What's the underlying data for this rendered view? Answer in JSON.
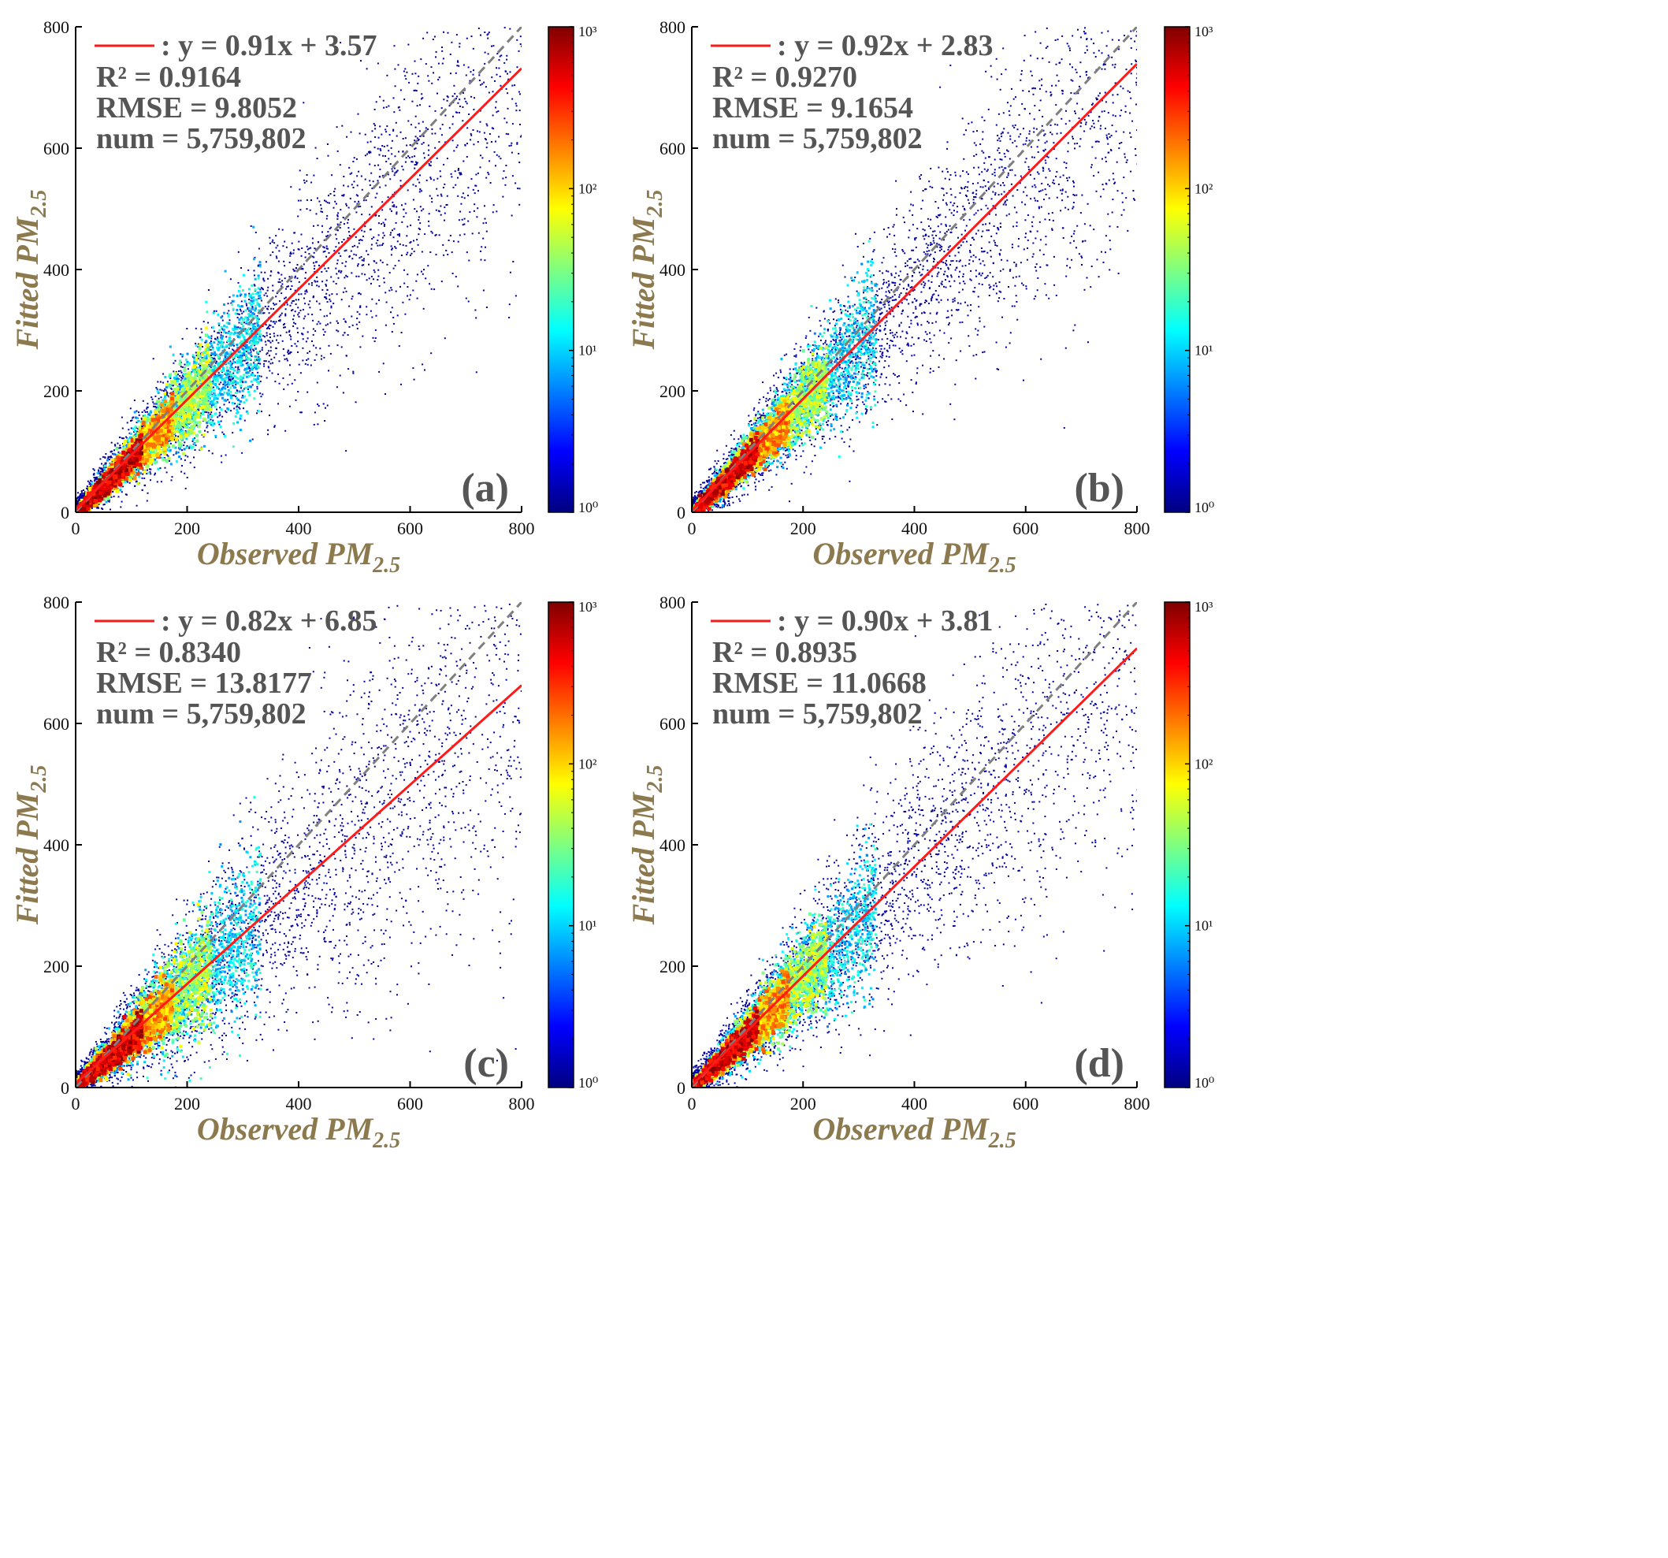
{
  "colors": {
    "fit_line": "#ff1a1a",
    "identity_line": "#7f7f7f",
    "axis_title": "#8c7a4e",
    "annotation": "#555555",
    "scatter_sparse": "#0000a0",
    "colormap": [
      "#00007f",
      "#0000ff",
      "#007fff",
      "#00ffff",
      "#7fff7f",
      "#ffff00",
      "#ff7f00",
      "#ff0000",
      "#7f0000"
    ]
  },
  "chart_data": [
    {
      "type": "scatter",
      "subtype": "density-scatter",
      "panel_label": "(a)",
      "xlabel": "Observed PM",
      "xlabel_sub": "2.5",
      "ylabel": "Fitted PM",
      "ylabel_sub": "2.5",
      "xlim": [
        0,
        800
      ],
      "ylim": [
        0,
        800
      ],
      "xticks": [
        0,
        200,
        400,
        600,
        800
      ],
      "yticks": [
        0,
        200,
        400,
        600,
        800
      ],
      "fit": {
        "slope": 0.91,
        "intercept": 3.57,
        "equation": ":  y = 0.91x + 3.57"
      },
      "identity_line": {
        "slope": 1,
        "intercept": 0
      },
      "stats": {
        "r2": "R² = 0.9164",
        "rmse": "RMSE = 9.8052",
        "num": "num = 5,759,802"
      },
      "colorbar": {
        "scale": "log",
        "range": [
          1,
          1000
        ],
        "tick_labels": [
          "10⁰",
          "10¹",
          "10²",
          "10³"
        ]
      },
      "density_spread": 0.16
    },
    {
      "type": "scatter",
      "subtype": "density-scatter",
      "panel_label": "(b)",
      "xlabel": "Observed PM",
      "xlabel_sub": "2.5",
      "ylabel": "Fitted PM",
      "ylabel_sub": "2.5",
      "xlim": [
        0,
        800
      ],
      "ylim": [
        0,
        800
      ],
      "xticks": [
        0,
        200,
        400,
        600,
        800
      ],
      "yticks": [
        0,
        200,
        400,
        600,
        800
      ],
      "fit": {
        "slope": 0.92,
        "intercept": 2.83,
        "equation": ":  y = 0.92x + 2.83"
      },
      "identity_line": {
        "slope": 1,
        "intercept": 0
      },
      "stats": {
        "r2": "R² = 0.9270",
        "rmse": "RMSE = 9.1654",
        "num": "num = 5,759,802"
      },
      "colorbar": {
        "scale": "log",
        "range": [
          1,
          1000
        ],
        "tick_labels": [
          "10⁰",
          "10¹",
          "10²",
          "10³"
        ]
      },
      "density_spread": 0.15
    },
    {
      "type": "scatter",
      "subtype": "density-scatter",
      "panel_label": "(c)",
      "xlabel": "Observed PM",
      "xlabel_sub": "2.5",
      "ylabel": "Fitted PM",
      "ylabel_sub": "2.5",
      "xlim": [
        0,
        800
      ],
      "ylim": [
        0,
        800
      ],
      "xticks": [
        0,
        200,
        400,
        600,
        800
      ],
      "yticks": [
        0,
        200,
        400,
        600,
        800
      ],
      "fit": {
        "slope": 0.82,
        "intercept": 6.85,
        "equation": ":  y = 0.82x + 6.85"
      },
      "identity_line": {
        "slope": 1,
        "intercept": 0
      },
      "stats": {
        "r2": "R² = 0.8340",
        "rmse": "RMSE = 13.8177",
        "num": "num = 5,759,802"
      },
      "colorbar": {
        "scale": "log",
        "range": [
          1,
          1000
        ],
        "tick_labels": [
          "10⁰",
          "10¹",
          "10²",
          "10³"
        ]
      },
      "density_spread": 0.21
    },
    {
      "type": "scatter",
      "subtype": "density-scatter",
      "panel_label": "(d)",
      "xlabel": "Observed PM",
      "xlabel_sub": "2.5",
      "ylabel": "Fitted PM",
      "ylabel_sub": "2.5",
      "xlim": [
        0,
        800
      ],
      "ylim": [
        0,
        800
      ],
      "xticks": [
        0,
        200,
        400,
        600,
        800
      ],
      "yticks": [
        0,
        200,
        400,
        600,
        800
      ],
      "fit": {
        "slope": 0.9,
        "intercept": 3.81,
        "equation": ":  y = 0.90x + 3.81"
      },
      "identity_line": {
        "slope": 1,
        "intercept": 0
      },
      "stats": {
        "r2": "R² = 0.8935",
        "rmse": "RMSE = 11.0668",
        "num": "num = 5,759,802"
      },
      "colorbar": {
        "scale": "log",
        "range": [
          1,
          1000
        ],
        "tick_labels": [
          "10⁰",
          "10¹",
          "10²",
          "10³"
        ]
      },
      "density_spread": 0.18
    }
  ]
}
